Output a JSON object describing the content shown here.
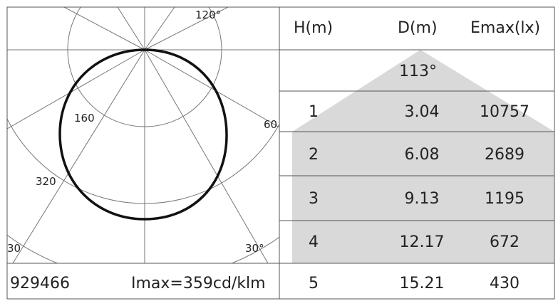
{
  "polar": {
    "ring_labels": [
      "160",
      "320"
    ],
    "angle_labels": [
      "120°",
      "60",
      "30°",
      "30"
    ],
    "line_color": "#111111",
    "grid_color": "#777777"
  },
  "footer": {
    "code": "929466",
    "imax": "Imax=359cd/klm"
  },
  "table": {
    "headers": [
      "H(m)",
      "D(m)",
      "Emax(lx)"
    ],
    "beam_angle": "113°",
    "shade_color": "#d9d9d9",
    "rows": [
      {
        "h": "1",
        "d": "3.04",
        "e": "10757"
      },
      {
        "h": "2",
        "d": "6.08",
        "e": "2689"
      },
      {
        "h": "3",
        "d": "9.13",
        "e": "1195"
      },
      {
        "h": "4",
        "d": "12.17",
        "e": "672"
      },
      {
        "h": "5",
        "d": "15.21",
        "e": "430"
      }
    ]
  }
}
